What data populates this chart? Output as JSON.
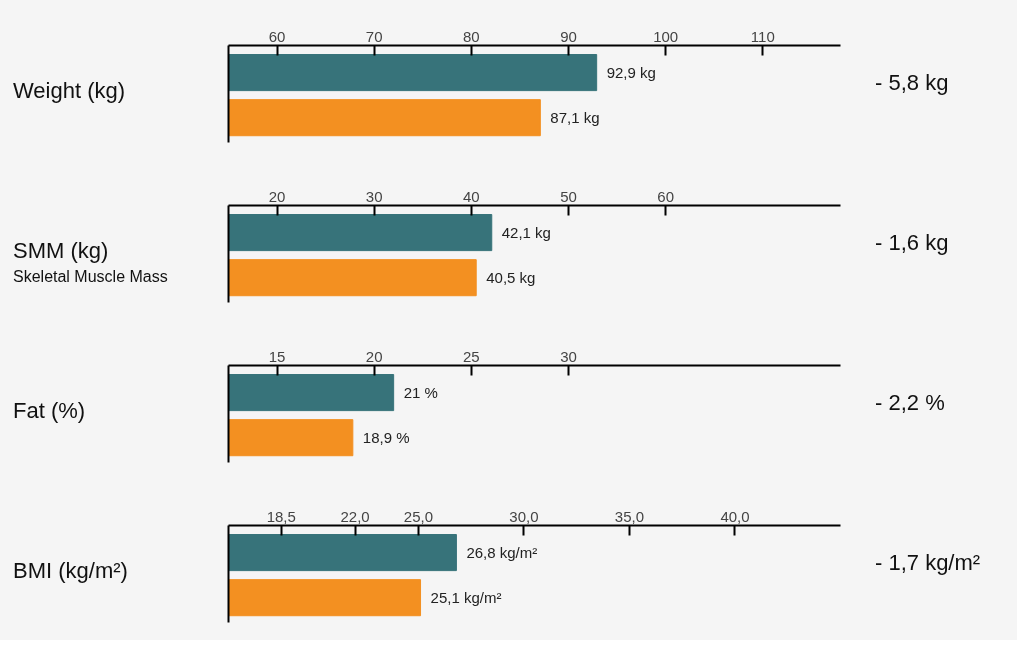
{
  "chart_data": [
    {
      "type": "bar",
      "orientation": "horizontal",
      "ylabel": "Weight (kg)",
      "categories": [
        null,
        null
      ],
      "values": [
        92.9,
        87.1
      ],
      "colors": [
        "#37737a",
        "#f39021"
      ],
      "value_labels": [
        "92,9 kg",
        "87,1 kg"
      ],
      "xlim": [
        55,
        118
      ],
      "xticks": [
        60,
        70,
        80,
        90,
        100,
        110
      ],
      "annotations": [
        "- 5,8 kg"
      ],
      "tick_labels": "x",
      "grid": false
    },
    {
      "type": "bar",
      "orientation": "horizontal",
      "ylabel": "SMM (kg)",
      "subtitle": "Skeletal Muscle Mass",
      "categories": [
        null,
        null
      ],
      "values": [
        42.1,
        40.5
      ],
      "colors": [
        "#37737a",
        "#f39021"
      ],
      "value_labels": [
        "42,1 kg",
        "40,5 kg"
      ],
      "xlim": [
        15,
        78
      ],
      "xticks": [
        20,
        30,
        40,
        50,
        60
      ],
      "annotations": [
        "- 1,6 kg"
      ],
      "tick_labels": "x",
      "grid": false
    },
    {
      "type": "bar",
      "orientation": "horizontal",
      "ylabel": "Fat (%)",
      "categories": [
        null,
        null
      ],
      "values": [
        21,
        18.9
      ],
      "colors": [
        "#37737a",
        "#f39021"
      ],
      "value_labels": [
        "21 %",
        "18,9 %"
      ],
      "xlim": [
        12.5,
        44
      ],
      "xticks": [
        15,
        20,
        25,
        30
      ],
      "annotations": [
        "- 2,2 %"
      ],
      "tick_labels": "x",
      "grid": false
    },
    {
      "type": "bar",
      "orientation": "horizontal",
      "ylabel": "BMI (kg/m²)",
      "categories": [
        null,
        null
      ],
      "values": [
        26.8,
        25.1
      ],
      "colors": [
        "#37737a",
        "#f39021"
      ],
      "value_labels": [
        "26,8 kg/m²",
        "25,1 kg/m²"
      ],
      "xlim": [
        16,
        45
      ],
      "xticks": [
        {
          "value": 18.5,
          "label": "18,5"
        },
        {
          "value": 22,
          "label": "22,0"
        },
        {
          "value": 25,
          "label": "25,0"
        },
        {
          "value": 30,
          "label": "30,0"
        },
        {
          "value": 35,
          "label": "35,0"
        },
        {
          "value": 40,
          "label": "40,0"
        }
      ],
      "annotations": [
        "- 1,7 kg/m²"
      ],
      "tick_labels": "x",
      "grid": false
    }
  ]
}
